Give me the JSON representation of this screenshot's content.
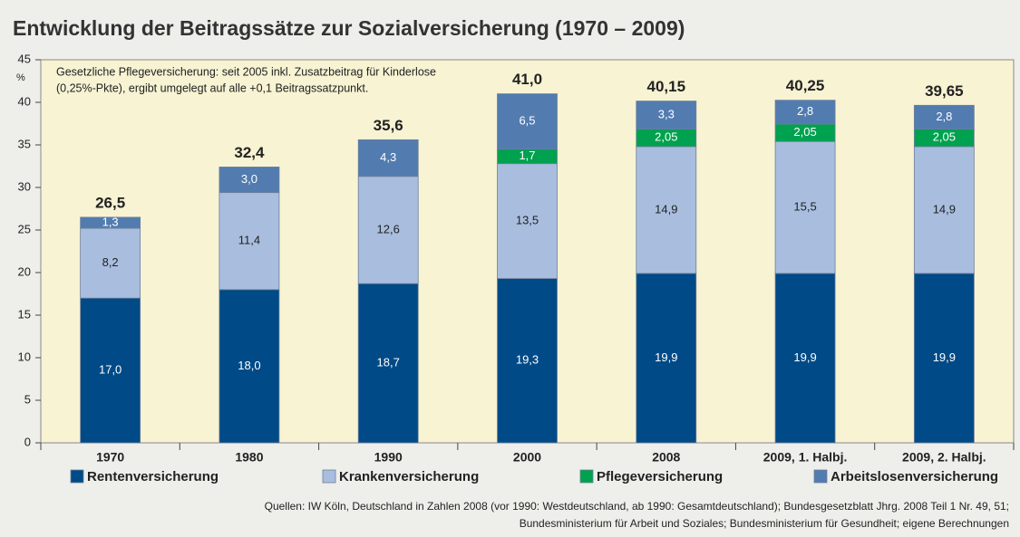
{
  "chart_data": {
    "type": "bar",
    "stacked": true,
    "title": "Entwicklung der Beitragssätze zur Sozialversicherung (1970 – 2009)",
    "y_unit": "%",
    "annotation": [
      "Gesetzliche Pflegeversicherung: seit 2005 inkl. Zusatzbeitrag für Kinderlose",
      "(0,25%-Pkte), ergibt umgelegt auf alle +0,1 Beitragssatzpunkt."
    ],
    "categories": [
      "1970",
      "1980",
      "1990",
      "2000",
      "2008",
      "2009, 1. Halbj.",
      "2009, 2. Halbj."
    ],
    "series": [
      {
        "name": "Rentenversicherung",
        "color": "#004a87",
        "label_color": "#ffffff",
        "values": [
          17.0,
          18.0,
          18.7,
          19.3,
          19.9,
          19.9,
          19.9
        ],
        "value_labels": [
          "17,0",
          "18,0",
          "18,7",
          "19,3",
          "19,9",
          "19,9",
          "19,9"
        ]
      },
      {
        "name": "Krankenversicherung",
        "color": "#a9bedf",
        "label_color": "#222222",
        "values": [
          8.2,
          11.4,
          12.6,
          13.5,
          14.9,
          15.5,
          14.9
        ],
        "value_labels": [
          "8,2",
          "11,4",
          "12,6",
          "13,5",
          "14,9",
          "15,5",
          "14,9"
        ]
      },
      {
        "name": "Pflegeversicherung",
        "color": "#00a24f",
        "label_color": "#ffffff",
        "values": [
          null,
          null,
          null,
          1.7,
          2.05,
          2.05,
          2.05
        ],
        "value_labels": [
          null,
          null,
          null,
          "1,7",
          "2,05",
          "2,05",
          "2,05"
        ]
      },
      {
        "name": "Arbeitslosenversicherung",
        "color": "#527cb0",
        "label_color": "#ffffff",
        "values": [
          1.3,
          3.0,
          4.3,
          6.5,
          3.3,
          2.8,
          2.8
        ],
        "value_labels": [
          "1,3",
          "3,0",
          "4,3",
          "6,5",
          "3,3",
          "2,8",
          "2,8"
        ]
      }
    ],
    "totals": [
      26.5,
      32.4,
      35.6,
      41.0,
      40.15,
      40.25,
      39.65
    ],
    "total_labels": [
      "26,5",
      "32,4",
      "35,6",
      "41,0",
      "40,15",
      "40,25",
      "39,65"
    ],
    "ylim": [
      0,
      45
    ],
    "yticks": [
      0,
      5,
      10,
      15,
      20,
      25,
      30,
      35,
      40,
      45
    ],
    "grid": false,
    "plot_background": "#f7f3d3",
    "sources": [
      "Quellen: IW Köln, Deutschland in Zahlen 2008 (vor 1990: Westdeutschland, ab 1990: Gesamtdeutschland); Bundesgesetzblatt Jhrg. 2008 Teil 1 Nr. 49, 51;",
      "Bundesministerium für Arbeit und Soziales; Bundesministerium für Gesundheit; eigene Berechnungen"
    ]
  }
}
